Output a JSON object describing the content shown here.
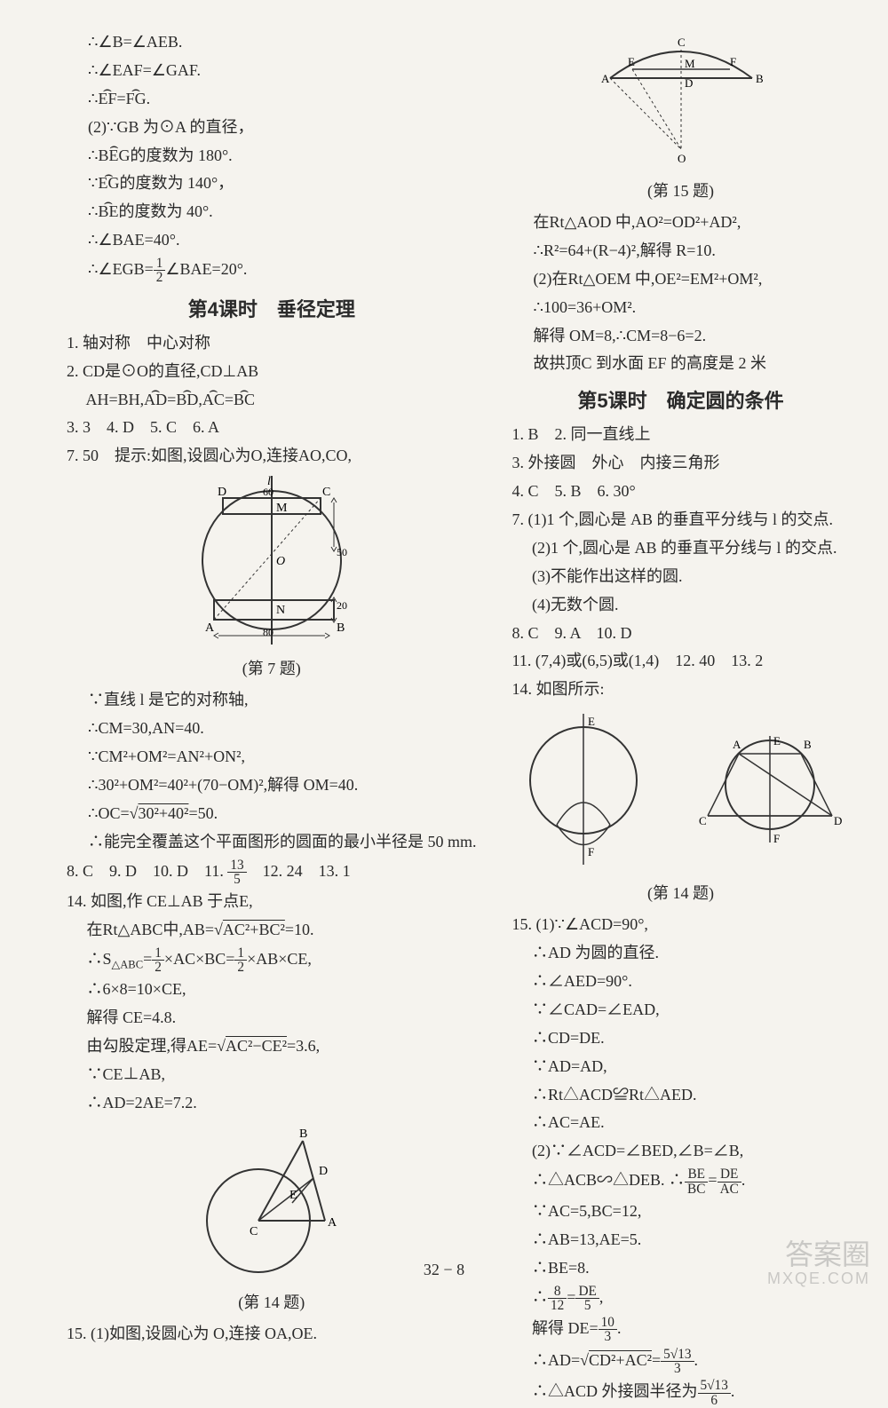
{
  "left": {
    "pre_lines": [
      "∴∠B=∠AEB.",
      "∴∠EAF=∠GAF.",
      "∴<arc>EF</arc>=<arc>FG</arc>.",
      "(2)∵GB 为⊙A 的直径，",
      "∴<arc>BEG</arc>的度数为 180°.",
      "∵<arc>EG</arc>的度数为 140°，",
      "∴<arc>BE</arc>的度数为 40°.",
      "∴∠BAE=40°.",
      "∴∠EGB=<frac>1|2</frac>∠BAE=20°."
    ],
    "section4_title": "第4课时　垂径定理",
    "s4_a": [
      "1. 轴对称　中心对称",
      "2. CD是⊙O的直径,CD⊥AB",
      "　 AH=BH,<arc>AD</arc>=<arc>BD</arc>,<arc>AC</arc>=<arc>BC</arc>",
      "3. 3　4. D　5. C　6. A",
      "7. 50　提示:如图,设圆心为O,连接AO,CO,"
    ],
    "q7_caption": "(第 7 题)",
    "s4_b": [
      "∵直线 l 是它的对称轴,",
      "∴CM=30,AN=40.",
      "∵CM²+OM²=AN²+ON²,",
      "∴30²+OM²=40²+(70−OM)²,解得 OM=40.",
      "∴OC=√<sqrt>30²+40²</sqrt>=50.",
      "∴能完全覆盖这个平面图形的圆面的最小半径是 50 mm."
    ],
    "s4_c": [
      "8. C　9. D　10. D　11. <frac>13|5</frac>　12. 24　13. 1",
      "14. 如图,作 CE⊥AB 于点E,",
      "　 在Rt△ABC中,AB=√<sqrt>AC²+BC²</sqrt>=10.",
      "　 ∴S<sub>△ABC</sub>=<frac>1|2</frac>×AC×BC=<frac>1|2</frac>×AB×CE,",
      "　 ∴6×8=10×CE,",
      "　 解得 CE=4.8.",
      "　 由勾股定理,得AE=√<sqrt>AC²−CE²</sqrt>=3.6,",
      "　 ∵CE⊥AB,",
      "　 ∴AD=2AE=7.2."
    ],
    "q14_caption": "(第 14 题)",
    "s4_d": [
      "15. (1)如图,设圆心为 O,连接 OA,OE."
    ],
    "fig7": {
      "labels": [
        "D",
        "C",
        "M",
        "O",
        "N",
        "A",
        "B",
        "l"
      ],
      "dims": [
        "60",
        "50",
        "20",
        "80"
      ]
    },
    "fig14": {
      "labels": [
        "B",
        "D",
        "E",
        "C",
        "A"
      ]
    }
  },
  "right": {
    "fig15": {
      "labels": [
        "A",
        "E",
        "C",
        "M",
        "D",
        "F",
        "B",
        "O"
      ]
    },
    "q15_caption": "(第 15 题)",
    "r_a": [
      "在Rt△AOD 中,AO²=OD²+AD²,",
      "∴R²=64+(R−4)²,解得 R=10.",
      "(2)在Rt△OEM 中,OE²=EM²+OM²,",
      "∴100=36+OM².",
      "解得 OM=8,∴CM=8−6=2.",
      "故拱顶C 到水面 EF 的高度是 2 米"
    ],
    "section5_title": "第5课时　确定圆的条件",
    "s5_a": [
      "1. B　2. 同一直线上",
      "3. 外接圆　外心　内接三角形",
      "4. C　5. B　6. 30°",
      "7. (1)1 个,圆心是 AB 的垂直平分线与 l 的交点.",
      "　 (2)1 个,圆心是 AB 的垂直平分线与 l 的交点.",
      "　 (3)不能作出这样的圆.",
      "　 (4)无数个圆.",
      "8. C　9. A　10. D",
      "11. (7,4)或(6,5)或(1,4)　12. 40　13. 2",
      "14. 如图所示:"
    ],
    "q14r_caption": "(第 14 题)",
    "s5_b": [
      "15. (1)∵∠ACD=90°,",
      "　 ∴AD 为圆的直径.",
      "　 ∴∠AED=90°.",
      "　 ∵∠CAD=∠EAD,",
      "　 ∴CD=DE.",
      "　 ∵AD=AD,",
      "　 ∴Rt△ACD≌Rt△AED.",
      "　 ∴AC=AE.",
      "　 (2)∵∠ACD=∠BED,∠B=∠B,",
      "　 ∴△ACB∽△DEB. ∴<frac>BE|BC</frac>=<frac>DE|AC</frac>.",
      "　 ∵AC=5,BC=12,",
      "　 ∴AB=13,AE=5.",
      "　 ∴BE=8.",
      "　 ∴<frac>8|12</frac>=<frac>DE|5</frac>,",
      "　 解得 DE=<frac>10|3</frac>.",
      "　 ∴AD=√<sqrt>CD²+AC²</sqrt>=<frac>5√13|3</frac>.",
      "　 ∴△ACD 外接圆半径为<frac>5√13|6</frac>."
    ],
    "fig14r": {
      "labels": [
        "E",
        "F",
        "A",
        "B",
        "C",
        "D",
        "E",
        "F"
      ]
    }
  },
  "page_number": "32 − 8",
  "watermark": {
    "top": "答案圈",
    "bottom": "MXQE.COM"
  }
}
